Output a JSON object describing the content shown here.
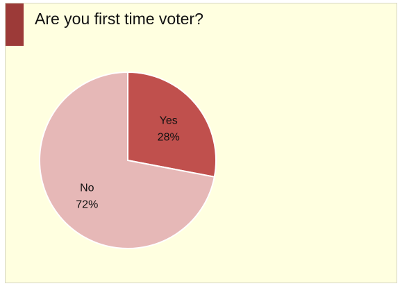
{
  "title": "Are you first time voter?",
  "colors": {
    "background": "#ffffe0",
    "accent": "#9c3a38",
    "yes": "#c0504d",
    "no": "#e6b8b7"
  },
  "chart_data": {
    "type": "pie",
    "title": "Are you first time voter?",
    "start_angle_deg": 0,
    "direction": "clockwise",
    "slices": [
      {
        "label": "Yes",
        "value": 28,
        "display": "28%",
        "color": "#c0504d"
      },
      {
        "label": "No",
        "value": 72,
        "display": "72%",
        "color": "#e6b8b7"
      }
    ]
  }
}
